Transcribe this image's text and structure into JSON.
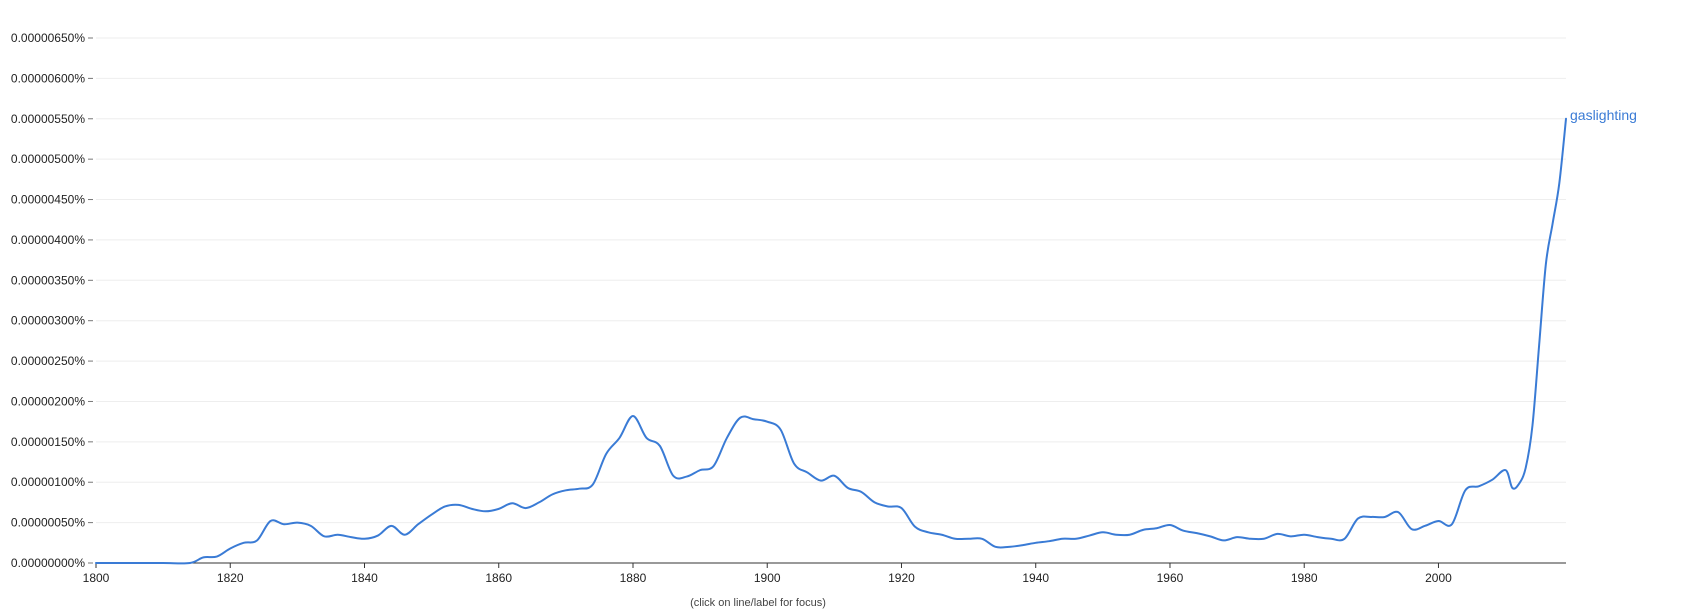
{
  "footnote": "(click on line/label for focus)",
  "chart_data": {
    "type": "line",
    "xlabel": "",
    "ylabel": "",
    "xlim": [
      1800,
      2019
    ],
    "ylim": [
      0,
      6.5e-06
    ],
    "grid": true,
    "x_ticks": [
      1800,
      1820,
      1840,
      1860,
      1880,
      1900,
      1920,
      1940,
      1960,
      1980,
      2000
    ],
    "x_tick_labels": [
      "1800",
      "1820",
      "1840",
      "1860",
      "1880",
      "1900",
      "1920",
      "1940",
      "1960",
      "1980",
      "2000"
    ],
    "y_ticks": [
      0,
      5e-07,
      1e-06,
      1.5e-06,
      2e-06,
      2.5e-06,
      3e-06,
      3.5e-06,
      4e-06,
      4.5e-06,
      5e-06,
      5.5e-06,
      6e-06,
      6.5e-06
    ],
    "y_tick_labels": [
      "0.00000000%",
      "0.00000050%",
      "0.00000100%",
      "0.00000150%",
      "0.00000200%",
      "0.00000250%",
      "0.00000300%",
      "0.00000350%",
      "0.00000400%",
      "0.00000450%",
      "0.00000500%",
      "0.00000550%",
      "0.00000600%",
      "0.00000650%"
    ],
    "colors": {
      "series": "#3a7bd5",
      "grid": "#eeeeee",
      "axis": "#333333"
    },
    "series": [
      {
        "name": "gaslighting",
        "x": [
          1800,
          1805,
          1810,
          1814,
          1816,
          1818,
          1820,
          1822,
          1824,
          1826,
          1828,
          1830,
          1832,
          1834,
          1836,
          1838,
          1840,
          1842,
          1844,
          1846,
          1848,
          1850,
          1852,
          1854,
          1856,
          1858,
          1860,
          1862,
          1864,
          1866,
          1868,
          1870,
          1872,
          1874,
          1876,
          1878,
          1880,
          1882,
          1884,
          1886,
          1888,
          1890,
          1892,
          1894,
          1896,
          1898,
          1900,
          1902,
          1904,
          1906,
          1908,
          1910,
          1912,
          1914,
          1916,
          1918,
          1920,
          1922,
          1924,
          1926,
          1928,
          1930,
          1932,
          1934,
          1936,
          1938,
          1940,
          1942,
          1944,
          1946,
          1948,
          1950,
          1952,
          1954,
          1956,
          1958,
          1960,
          1962,
          1964,
          1966,
          1968,
          1970,
          1972,
          1974,
          1976,
          1978,
          1980,
          1982,
          1984,
          1986,
          1988,
          1990,
          1992,
          1994,
          1996,
          1998,
          2000,
          2002,
          2004,
          2006,
          2008,
          2010,
          2011,
          2012,
          2013,
          2014,
          2015,
          2016,
          2017,
          2018,
          2019
        ],
        "y": [
          0,
          0,
          0,
          0,
          7e-08,
          8e-08,
          1.8e-07,
          2.5e-07,
          2.8e-07,
          5.2e-07,
          4.8e-07,
          5e-07,
          4.6e-07,
          3.3e-07,
          3.5e-07,
          3.2e-07,
          3e-07,
          3.4e-07,
          4.6e-07,
          3.5e-07,
          4.8e-07,
          6e-07,
          7e-07,
          7.2e-07,
          6.7e-07,
          6.4e-07,
          6.7e-07,
          7.4e-07,
          6.8e-07,
          7.5e-07,
          8.5e-07,
          9e-07,
          9.2e-07,
          9.7e-07,
          1.35e-06,
          1.55e-06,
          1.82e-06,
          1.55e-06,
          1.45e-06,
          1.08e-06,
          1.07e-06,
          1.15e-06,
          1.2e-06,
          1.55e-06,
          1.8e-06,
          1.78e-06,
          1.75e-06,
          1.65e-06,
          1.23e-06,
          1.12e-06,
          1.02e-06,
          1.08e-06,
          9.3e-07,
          8.8e-07,
          7.5e-07,
          7e-07,
          6.8e-07,
          4.5e-07,
          3.8e-07,
          3.5e-07,
          3e-07,
          3e-07,
          3e-07,
          2e-07,
          2e-07,
          2.2e-07,
          2.5e-07,
          2.7e-07,
          3e-07,
          3e-07,
          3.4e-07,
          3.8e-07,
          3.5e-07,
          3.5e-07,
          4.1e-07,
          4.3e-07,
          4.7e-07,
          4e-07,
          3.7e-07,
          3.3e-07,
          2.8e-07,
          3.2e-07,
          3e-07,
          3e-07,
          3.6e-07,
          3.3e-07,
          3.5e-07,
          3.2e-07,
          3e-07,
          3e-07,
          5.5e-07,
          5.7e-07,
          5.7e-07,
          6.3e-07,
          4.2e-07,
          4.6e-07,
          5.2e-07,
          4.8e-07,
          9e-07,
          9.5e-07,
          1.03e-06,
          1.15e-06,
          9.3e-07,
          9.8e-07,
          1.18e-06,
          1.7e-06,
          2.7e-06,
          3.7e-06,
          4.2e-06,
          4.7e-06,
          5.5e-06
        ]
      }
    ]
  }
}
